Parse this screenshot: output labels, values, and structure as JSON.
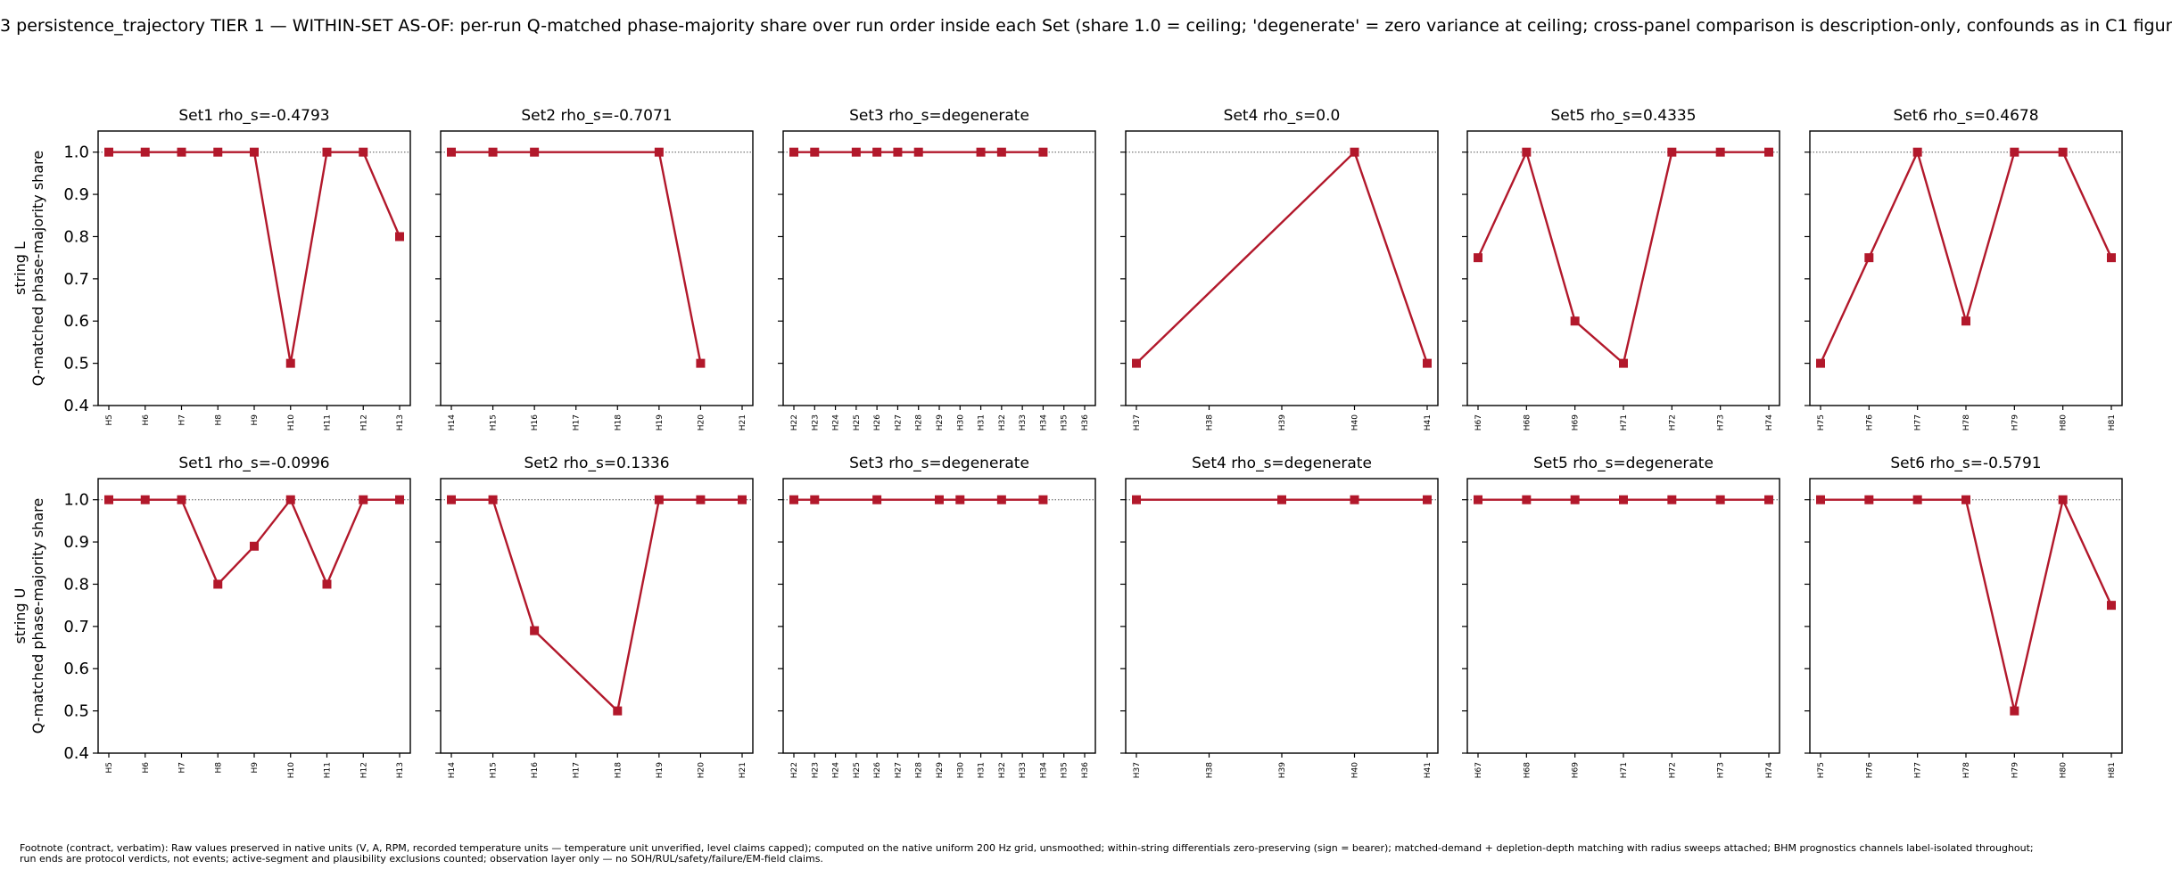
{
  "figure_title": "3 persistence_trajectory TIER 1 — WITHIN-SET AS-OF: per-run Q-matched phase-majority share over run order inside each Set (share 1.0 = ceiling; 'degenerate' = zero variance at ceiling; cross-panel comparison is description-only, confounds as in C1 figur",
  "footnote_line1": "Footnote (contract, verbatim): Raw values preserved in native units (V, A, RPM, recorded temperature units — temperature unit unverified, level claims capped); computed on the native uniform 200 Hz grid, unsmoothed; within-string differentials zero-preserving (sign = bearer); matched-demand + depletion-depth matching with radius sweeps attached; BHM prognostics channels label-isolated throughout;",
  "footnote_line2": "run ends are protocol verdicts, not events; active-segment and plausibility exclusions counted; observation layer only — no SOH/RUL/safety/failure/EM-field claims.",
  "colors": {
    "series": "#b2182b",
    "ceiling_line": "#555555",
    "axis": "#000000"
  },
  "marker": "square",
  "chart_data": {
    "type": "line",
    "rows": [
      {
        "ylabel_line1": "string L",
        "ylabel_line2": "Q-matched phase-majority share",
        "yticks": [
          "0.4",
          "0.5",
          "0.6",
          "0.7",
          "0.8",
          "0.9",
          "1.0"
        ],
        "ylim": [
          0.4,
          1.05
        ],
        "ceiling": 1.0,
        "panels": [
          {
            "title": "Set1  rho_s=-0.4793",
            "ticks": [
              "H5",
              "H6",
              "H7",
              "H8",
              "H9",
              "H10",
              "H11",
              "H12",
              "H13"
            ],
            "points": [
              [
                "H5",
                1.0
              ],
              [
                "H6",
                1.0
              ],
              [
                "H7",
                1.0
              ],
              [
                "H8",
                1.0
              ],
              [
                "H9",
                1.0
              ],
              [
                "H10",
                0.5
              ],
              [
                "H11",
                1.0
              ],
              [
                "H12",
                1.0
              ],
              [
                "H13",
                0.8
              ]
            ]
          },
          {
            "title": "Set2  rho_s=-0.7071",
            "ticks": [
              "H14",
              "H15",
              "H16",
              "H17",
              "H18",
              "H19",
              "H20",
              "H21"
            ],
            "points": [
              [
                "H14",
                1.0
              ],
              [
                "H15",
                1.0
              ],
              [
                "H16",
                1.0
              ],
              [
                "H19",
                1.0
              ],
              [
                "H20",
                0.5
              ]
            ]
          },
          {
            "title": "Set3  rho_s=degenerate",
            "ticks": [
              "H22",
              "H23",
              "H24",
              "H25",
              "H26",
              "H27",
              "H28",
              "H29",
              "H30",
              "H31",
              "H32",
              "H33",
              "H34",
              "H35",
              "H36"
            ],
            "points": [
              [
                "H22",
                1.0
              ],
              [
                "H23",
                1.0
              ],
              [
                "H25",
                1.0
              ],
              [
                "H26",
                1.0
              ],
              [
                "H27",
                1.0
              ],
              [
                "H28",
                1.0
              ],
              [
                "H31",
                1.0
              ],
              [
                "H32",
                1.0
              ],
              [
                "H34",
                1.0
              ]
            ]
          },
          {
            "title": "Set4  rho_s=0.0",
            "ticks": [
              "H37",
              "H38",
              "H39",
              "H40",
              "H41"
            ],
            "points": [
              [
                "H37",
                0.5
              ],
              [
                "H40",
                1.0
              ],
              [
                "H41",
                0.5
              ]
            ]
          },
          {
            "title": "Set5  rho_s=0.4335",
            "ticks": [
              "H67",
              "H68",
              "H69",
              "H71",
              "H72",
              "H73",
              "H74"
            ],
            "points": [
              [
                "H67",
                0.75
              ],
              [
                "H68",
                1.0
              ],
              [
                "H69",
                0.6
              ],
              [
                "H71",
                0.5
              ],
              [
                "H72",
                1.0
              ],
              [
                "H73",
                1.0
              ],
              [
                "H74",
                1.0
              ]
            ]
          },
          {
            "title": "Set6  rho_s=0.4678",
            "ticks": [
              "H75",
              "H76",
              "H77",
              "H78",
              "H79",
              "H80",
              "H81"
            ],
            "points": [
              [
                "H75",
                0.5
              ],
              [
                "H76",
                0.75
              ],
              [
                "H77",
                1.0
              ],
              [
                "H78",
                0.6
              ],
              [
                "H79",
                1.0
              ],
              [
                "H80",
                1.0
              ],
              [
                "H81",
                0.75
              ]
            ]
          }
        ]
      },
      {
        "ylabel_line1": "string U",
        "ylabel_line2": "Q-matched phase-majority share",
        "yticks": [
          "0.4",
          "0.5",
          "0.6",
          "0.7",
          "0.8",
          "0.9",
          "1.0"
        ],
        "ylim": [
          0.4,
          1.05
        ],
        "ceiling": 1.0,
        "panels": [
          {
            "title": "Set1  rho_s=-0.0996",
            "ticks": [
              "H5",
              "H6",
              "H7",
              "H8",
              "H9",
              "H10",
              "H11",
              "H12",
              "H13"
            ],
            "points": [
              [
                "H5",
                1.0
              ],
              [
                "H6",
                1.0
              ],
              [
                "H7",
                1.0
              ],
              [
                "H8",
                0.8
              ],
              [
                "H9",
                0.89
              ],
              [
                "H10",
                1.0
              ],
              [
                "H11",
                0.8
              ],
              [
                "H12",
                1.0
              ],
              [
                "H13",
                1.0
              ]
            ]
          },
          {
            "title": "Set2  rho_s=0.1336",
            "ticks": [
              "H14",
              "H15",
              "H16",
              "H17",
              "H18",
              "H19",
              "H20",
              "H21"
            ],
            "points": [
              [
                "H14",
                1.0
              ],
              [
                "H15",
                1.0
              ],
              [
                "H16",
                0.69
              ],
              [
                "H18",
                0.5
              ],
              [
                "H19",
                1.0
              ],
              [
                "H20",
                1.0
              ],
              [
                "H21",
                1.0
              ]
            ]
          },
          {
            "title": "Set3  rho_s=degenerate",
            "ticks": [
              "H22",
              "H23",
              "H24",
              "H25",
              "H26",
              "H27",
              "H28",
              "H29",
              "H30",
              "H31",
              "H32",
              "H33",
              "H34",
              "H35",
              "H36"
            ],
            "points": [
              [
                "H22",
                1.0
              ],
              [
                "H23",
                1.0
              ],
              [
                "H26",
                1.0
              ],
              [
                "H29",
                1.0
              ],
              [
                "H30",
                1.0
              ],
              [
                "H32",
                1.0
              ],
              [
                "H34",
                1.0
              ]
            ]
          },
          {
            "title": "Set4  rho_s=degenerate",
            "ticks": [
              "H37",
              "H38",
              "H39",
              "H40",
              "H41"
            ],
            "points": [
              [
                "H37",
                1.0
              ],
              [
                "H39",
                1.0
              ],
              [
                "H40",
                1.0
              ],
              [
                "H41",
                1.0
              ]
            ]
          },
          {
            "title": "Set5  rho_s=degenerate",
            "ticks": [
              "H67",
              "H68",
              "H69",
              "H71",
              "H72",
              "H73",
              "H74"
            ],
            "points": [
              [
                "H67",
                1.0
              ],
              [
                "H68",
                1.0
              ],
              [
                "H69",
                1.0
              ],
              [
                "H71",
                1.0
              ],
              [
                "H72",
                1.0
              ],
              [
                "H73",
                1.0
              ],
              [
                "H74",
                1.0
              ]
            ]
          },
          {
            "title": "Set6  rho_s=-0.5791",
            "ticks": [
              "H75",
              "H76",
              "H77",
              "H78",
              "H79",
              "H80",
              "H81"
            ],
            "points": [
              [
                "H75",
                1.0
              ],
              [
                "H76",
                1.0
              ],
              [
                "H77",
                1.0
              ],
              [
                "H78",
                1.0
              ],
              [
                "H79",
                0.5
              ],
              [
                "H80",
                1.0
              ],
              [
                "H81",
                0.75
              ]
            ]
          }
        ]
      }
    ]
  }
}
